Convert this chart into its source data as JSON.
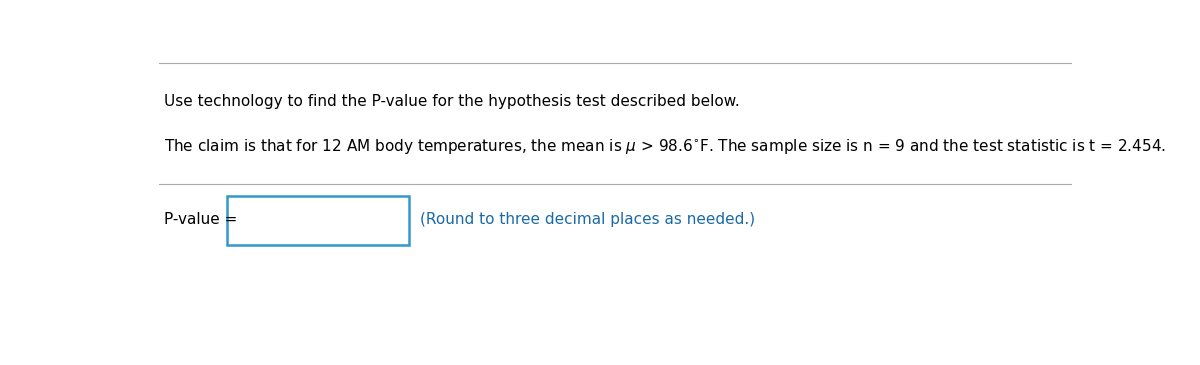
{
  "line1": "Use technology to find the P-value for the hypothesis test described below.",
  "line2": "The claim is that for 12 AM body temperatures, the mean is μ > 98.6°F. The sample size is n = 9 and the test statistic is t = 2.454.",
  "pvalue_label": "P-value =",
  "hint_text": "(Round to three decimal places as needed.)",
  "hint_color": "#1a6aa8",
  "box_edge_color": "#3399cc",
  "top_line_color": "#aaaaaa",
  "separator_color": "#aaaaaa",
  "bg_color": "#ffffff",
  "text_color": "#000000",
  "font_size": 11,
  "hint_font_size": 11
}
